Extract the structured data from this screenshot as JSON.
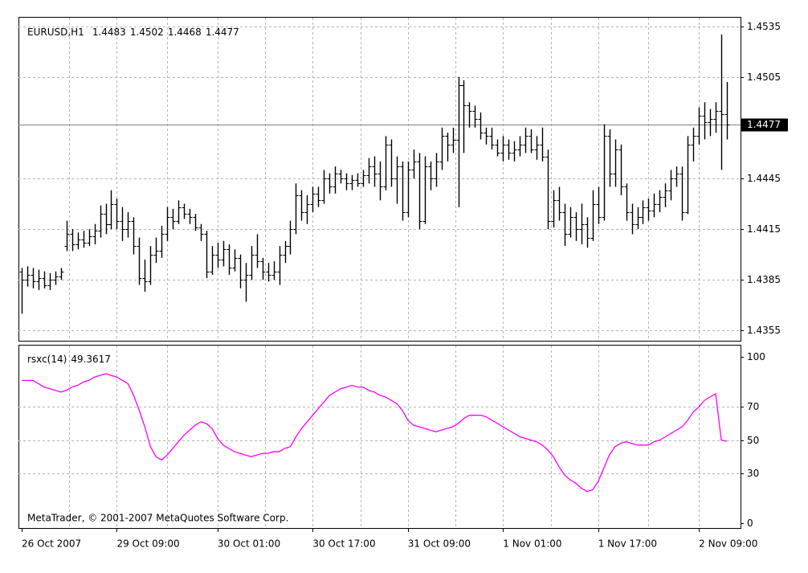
{
  "chart_data": [
    {
      "type": "ohlc",
      "title": "EURUSD,H1",
      "color": "#000000",
      "grid": true,
      "categories": [
        "26 Oct 2007",
        null,
        null,
        null,
        null,
        null,
        null,
        null,
        null,
        null,
        null,
        null,
        null,
        null,
        null,
        null,
        null,
        "29 Oct 09:00",
        null,
        null,
        null,
        null,
        null,
        null,
        null,
        null,
        null,
        null,
        null,
        null,
        null,
        null,
        null,
        null,
        null,
        "30 Oct 01:00",
        null,
        null,
        null,
        null,
        null,
        null,
        null,
        null,
        null,
        null,
        null,
        null,
        null,
        null,
        null,
        null,
        "30 Oct 17:00",
        null,
        null,
        null,
        null,
        null,
        null,
        null,
        null,
        null,
        null,
        null,
        null,
        null,
        null,
        null,
        null,
        "31 Oct 09:00",
        null,
        null,
        null,
        null,
        null,
        null,
        null,
        null,
        null,
        null,
        null,
        null,
        null,
        null,
        null,
        null,
        "1 Nov 01:00",
        null,
        null,
        null,
        null,
        null,
        null,
        null,
        null,
        null,
        null,
        null,
        null,
        null,
        null,
        null,
        null,
        "1 Nov 17:00",
        null,
        null,
        null,
        null,
        null,
        null,
        null,
        null,
        null,
        null,
        null,
        null,
        null,
        null,
        null,
        null,
        null,
        "2 Nov 09:00",
        null,
        null,
        null,
        null,
        null
      ],
      "open": [
        1.439,
        1.4385,
        1.4388,
        1.4384,
        1.4386,
        1.4382,
        1.4385,
        1.4387,
        1.4405,
        1.4412,
        1.4406,
        1.4409,
        1.4407,
        1.4411,
        1.4414,
        1.4424,
        1.4418,
        1.443,
        1.442,
        1.4415,
        1.442,
        1.4405,
        1.4386,
        1.4384,
        1.44,
        1.4402,
        1.4412,
        1.4422,
        1.442,
        1.4428,
        1.4424,
        1.4422,
        1.4416,
        1.4412,
        1.439,
        1.44,
        1.4397,
        1.4403,
        1.4392,
        1.4398,
        1.4385,
        1.4388,
        1.44,
        1.4396,
        1.439,
        1.4388,
        1.439,
        1.44,
        1.4405,
        1.4415,
        1.4435,
        1.4425,
        1.443,
        1.4436,
        1.4432,
        1.4445,
        1.444,
        1.4448,
        1.4445,
        1.4442,
        1.4444,
        1.4442,
        1.4447,
        1.4452,
        1.4448,
        1.444,
        1.4465,
        1.4445,
        1.4452,
        1.4425,
        1.445,
        1.4455,
        1.442,
        1.4452,
        1.4445,
        1.4455,
        1.447,
        1.4465,
        1.4468,
        1.45,
        1.4488,
        1.4485,
        1.448,
        1.4472,
        1.447,
        1.4465,
        1.446,
        1.4465,
        1.446,
        1.4462,
        1.4465,
        1.447,
        1.4462,
        1.4465,
        1.4458,
        1.442,
        1.4432,
        1.4425,
        1.4412,
        1.4422,
        1.4415,
        1.4418,
        1.441,
        1.443,
        1.4422,
        1.447,
        1.4448,
        1.4462,
        1.444,
        1.4425,
        1.4418,
        1.4422,
        1.4428,
        1.4426,
        1.443,
        1.4434,
        1.4438,
        1.4445,
        1.4448,
        1.4425,
        1.4465,
        1.447,
        1.4482,
        1.4478,
        1.448,
        1.4485,
        1.4483
      ],
      "high": [
        1.4392,
        1.4393,
        1.4392,
        1.4391,
        1.439,
        1.4389,
        1.439,
        1.4392,
        1.442,
        1.4415,
        1.4413,
        1.4414,
        1.4415,
        1.4418,
        1.4429,
        1.443,
        1.4438,
        1.4433,
        1.4428,
        1.4425,
        1.4422,
        1.441,
        1.4397,
        1.4405,
        1.441,
        1.4417,
        1.4428,
        1.4427,
        1.4432,
        1.443,
        1.4427,
        1.4424,
        1.4418,
        1.4414,
        1.4405,
        1.4407,
        1.4408,
        1.4406,
        1.4403,
        1.44,
        1.4395,
        1.4405,
        1.4412,
        1.4398,
        1.4395,
        1.4396,
        1.4405,
        1.4408,
        1.442,
        1.4442,
        1.4438,
        1.4435,
        1.444,
        1.444,
        1.445,
        1.4448,
        1.4452,
        1.445,
        1.4448,
        1.4447,
        1.4448,
        1.445,
        1.4457,
        1.4458,
        1.4455,
        1.447,
        1.4468,
        1.4458,
        1.4455,
        1.4455,
        1.4462,
        1.446,
        1.4458,
        1.4455,
        1.446,
        1.4475,
        1.4472,
        1.4475,
        1.4505,
        1.4503,
        1.449,
        1.4488,
        1.4484,
        1.4475,
        1.4475,
        1.4468,
        1.447,
        1.4468,
        1.4467,
        1.447,
        1.4475,
        1.4474,
        1.447,
        1.4475,
        1.4462,
        1.4438,
        1.444,
        1.443,
        1.4428,
        1.4425,
        1.443,
        1.4422,
        1.4438,
        1.444,
        1.4477,
        1.4474,
        1.4468,
        1.4465,
        1.4442,
        1.443,
        1.4428,
        1.4432,
        1.4433,
        1.4436,
        1.4438,
        1.4442,
        1.445,
        1.4452,
        1.4452,
        1.447,
        1.4475,
        1.4487,
        1.449,
        1.4486,
        1.449,
        1.453,
        1.4502
      ],
      "low": [
        1.4365,
        1.4381,
        1.438,
        1.4379,
        1.438,
        1.4379,
        1.4382,
        1.4385,
        1.4402,
        1.4402,
        1.4403,
        1.4404,
        1.4405,
        1.4406,
        1.441,
        1.4412,
        1.4415,
        1.4415,
        1.4408,
        1.441,
        1.44,
        1.4382,
        1.4378,
        1.4382,
        1.4395,
        1.4398,
        1.4408,
        1.4415,
        1.4418,
        1.4421,
        1.4418,
        1.4414,
        1.4408,
        1.4386,
        1.4388,
        1.4392,
        1.4393,
        1.4388,
        1.439,
        1.438,
        1.4372,
        1.4385,
        1.4392,
        1.4385,
        1.4384,
        1.4385,
        1.4382,
        1.4395,
        1.44,
        1.4412,
        1.442,
        1.4418,
        1.4425,
        1.4428,
        1.443,
        1.4436,
        1.4436,
        1.4442,
        1.4438,
        1.4438,
        1.444,
        1.444,
        1.4442,
        1.444,
        1.4432,
        1.4438,
        1.444,
        1.443,
        1.442,
        1.4422,
        1.4445,
        1.4415,
        1.4418,
        1.4438,
        1.444,
        1.445,
        1.4455,
        1.446,
        1.4428,
        1.446,
        1.4475,
        1.4475,
        1.4468,
        1.4465,
        1.4462,
        1.4458,
        1.4455,
        1.4456,
        1.4455,
        1.4458,
        1.446,
        1.446,
        1.4456,
        1.4455,
        1.4415,
        1.4416,
        1.442,
        1.4405,
        1.441,
        1.4408,
        1.4406,
        1.4404,
        1.4408,
        1.4418,
        1.442,
        1.444,
        1.444,
        1.4435,
        1.442,
        1.4412,
        1.4415,
        1.4418,
        1.442,
        1.4422,
        1.4425,
        1.4428,
        1.4432,
        1.444,
        1.442,
        1.4424,
        1.4455,
        1.4465,
        1.4468,
        1.447,
        1.4472,
        1.445,
        1.4468
      ],
      "close": [
        1.4385,
        1.4388,
        1.4384,
        1.4386,
        1.4382,
        1.4385,
        1.4387,
        1.439,
        1.4412,
        1.4406,
        1.4409,
        1.4407,
        1.4411,
        1.4414,
        1.4424,
        1.4418,
        1.443,
        1.442,
        1.4415,
        1.442,
        1.4405,
        1.4386,
        1.4384,
        1.44,
        1.4402,
        1.4412,
        1.4422,
        1.442,
        1.4428,
        1.4424,
        1.4422,
        1.4416,
        1.4412,
        1.439,
        1.44,
        1.4397,
        1.4403,
        1.4392,
        1.4398,
        1.4385,
        1.4388,
        1.44,
        1.4396,
        1.439,
        1.4388,
        1.439,
        1.44,
        1.4405,
        1.4415,
        1.4435,
        1.4425,
        1.443,
        1.4436,
        1.4432,
        1.4445,
        1.444,
        1.4448,
        1.4445,
        1.4442,
        1.4444,
        1.4442,
        1.4447,
        1.4452,
        1.4448,
        1.444,
        1.4465,
        1.4445,
        1.4452,
        1.4425,
        1.445,
        1.4455,
        1.442,
        1.4452,
        1.4445,
        1.4455,
        1.447,
        1.4465,
        1.4468,
        1.45,
        1.4488,
        1.4485,
        1.448,
        1.4472,
        1.447,
        1.4465,
        1.446,
        1.4465,
        1.446,
        1.4462,
        1.4465,
        1.447,
        1.4462,
        1.4465,
        1.4458,
        1.442,
        1.4432,
        1.4425,
        1.4412,
        1.4422,
        1.4415,
        1.4418,
        1.441,
        1.443,
        1.4422,
        1.447,
        1.4448,
        1.4462,
        1.444,
        1.4425,
        1.4418,
        1.4422,
        1.4428,
        1.4426,
        1.443,
        1.4434,
        1.4438,
        1.4445,
        1.4448,
        1.4425,
        1.4465,
        1.447,
        1.4482,
        1.4478,
        1.448,
        1.4485,
        1.4483,
        1.4477
      ],
      "ylim": [
        1.4349,
        1.454
      ],
      "yticks": [
        1.4535,
        1.4505,
        1.4445,
        1.4415,
        1.4385,
        1.4355
      ]
    },
    {
      "type": "line",
      "title": "rsxc(14)",
      "color": "#ff00ff",
      "grid": true,
      "values": [
        86,
        86,
        86,
        84,
        82,
        81,
        80,
        79,
        80,
        82,
        83,
        85,
        86,
        88,
        89,
        90,
        89,
        88,
        86,
        84,
        77,
        68,
        58,
        46,
        40,
        38,
        41,
        45,
        49,
        53,
        56,
        59,
        61,
        60,
        57,
        51,
        47,
        45,
        43,
        42,
        41,
        40,
        41,
        42,
        42,
        43,
        43,
        45,
        46,
        52,
        57,
        61,
        65,
        69,
        73,
        77,
        79,
        81,
        82,
        83,
        82,
        82,
        80,
        79,
        77,
        76,
        74,
        72,
        68,
        62,
        59,
        58,
        57,
        56,
        55,
        56,
        57,
        58,
        60,
        63,
        65,
        65,
        65,
        64,
        62,
        60,
        58,
        56,
        54,
        52,
        51,
        50,
        49,
        47,
        44,
        40,
        34,
        29,
        26,
        24,
        21,
        19,
        20,
        25,
        33,
        41,
        46,
        48,
        49,
        48,
        47,
        47,
        47,
        49,
        50,
        52,
        54,
        56,
        58,
        62,
        67,
        70,
        74,
        76,
        78,
        50,
        49.3617
      ],
      "ylim": [
        -3,
        107
      ],
      "yticks": [
        100,
        70,
        50,
        30,
        0
      ],
      "annotation": "MetaTrader, © 2001-2007 MetaQuotes Software Corp."
    }
  ]
}
